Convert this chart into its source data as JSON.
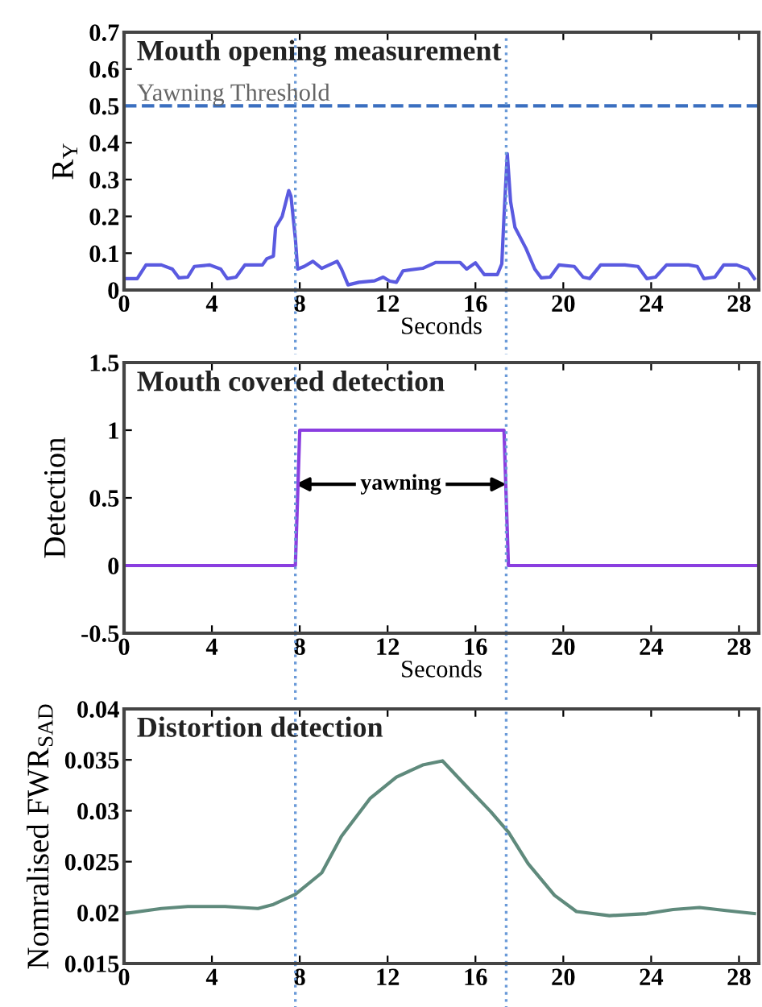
{
  "chart_data": [
    {
      "type": "line",
      "title": "Mouth opening measurement",
      "xlabel": "Seconds",
      "ylabel": "R$_{Y}$",
      "xlim": [
        0,
        28.9
      ],
      "xticks": [
        0,
        4,
        8,
        12,
        16,
        20,
        24,
        28
      ],
      "ylim": [
        0,
        0.7
      ],
      "yticks": [
        0,
        0.1,
        0.2,
        0.3,
        0.4,
        0.5,
        0.6,
        0.7
      ],
      "grid": false,
      "legend": false,
      "x": [
        0,
        0.6,
        1.0,
        1.7,
        2.2,
        2.5,
        2.9,
        3.2,
        3.9,
        4.4,
        4.7,
        5.1,
        5.5,
        6.3,
        6.5,
        6.8,
        6.9,
        7.2,
        7.5,
        7.6,
        7.8,
        7.9,
        8.2,
        8.6,
        9.0,
        9.7,
        9.9,
        10.2,
        10.7,
        11.4,
        11.8,
        12.1,
        12.4,
        12.7,
        13.6,
        14.2,
        15.3,
        15.6,
        16.0,
        16.4,
        17.0,
        17.2,
        17.3,
        17.45,
        17.6,
        17.8,
        18.3,
        18.7,
        19.0,
        19.4,
        19.8,
        20.5,
        20.9,
        21.2,
        21.7,
        22.8,
        23.4,
        23.8,
        24.2,
        24.7,
        25.7,
        26.1,
        26.4,
        26.9,
        27.3,
        27.9,
        28.4,
        28.7
      ],
      "series": [
        {
          "color": "#5a5ae0",
          "values": [
            0.031,
            0.031,
            0.068,
            0.068,
            0.057,
            0.033,
            0.035,
            0.064,
            0.068,
            0.057,
            0.031,
            0.035,
            0.068,
            0.068,
            0.085,
            0.092,
            0.17,
            0.2,
            0.27,
            0.255,
            0.14,
            0.057,
            0.064,
            0.078,
            0.059,
            0.078,
            0.057,
            0.014,
            0.021,
            0.025,
            0.035,
            0.024,
            0.021,
            0.052,
            0.059,
            0.075,
            0.075,
            0.057,
            0.074,
            0.042,
            0.042,
            0.071,
            0.2,
            0.37,
            0.24,
            0.17,
            0.113,
            0.057,
            0.033,
            0.035,
            0.068,
            0.064,
            0.035,
            0.031,
            0.068,
            0.068,
            0.064,
            0.031,
            0.035,
            0.068,
            0.068,
            0.064,
            0.031,
            0.035,
            0.068,
            0.068,
            0.057,
            0.031
          ]
        }
      ],
      "ref_lines": [
        {
          "axis": "y",
          "value": 0.5,
          "label": "Yawning Threshold",
          "color": "#3a6fc0",
          "line_style": "dashed"
        },
        {
          "axis": "x",
          "value": 7.8,
          "color": "#6a9ad8",
          "line_style": "dotted"
        },
        {
          "axis": "x",
          "value": 17.4,
          "color": "#6a9ad8",
          "line_style": "dotted"
        }
      ]
    },
    {
      "type": "line",
      "title": "Mouth covered detection",
      "xlabel": "Seconds",
      "ylabel": "Detection",
      "xlim": [
        0,
        28.9
      ],
      "xticks": [
        0,
        4,
        8,
        12,
        16,
        20,
        24,
        28
      ],
      "ylim": [
        -0.5,
        1.5
      ],
      "yticks": [
        -0.5,
        0,
        0.5,
        1,
        1.5
      ],
      "grid": false,
      "legend": false,
      "x": [
        0,
        7.8,
        8.0,
        17.3,
        17.5,
        28.9
      ],
      "series": [
        {
          "color": "#8a3ee0",
          "values": [
            0,
            0,
            1,
            1,
            0,
            0
          ]
        }
      ],
      "annotations": [
        "yawning"
      ],
      "ref_lines": [
        {
          "axis": "x",
          "value": 7.8,
          "color": "#6a9ad8",
          "line_style": "dotted"
        },
        {
          "axis": "x",
          "value": 17.4,
          "color": "#6a9ad8",
          "line_style": "dotted"
        }
      ]
    },
    {
      "type": "line",
      "title": "Distortion detection",
      "ylabel": "Nomralised FWR$_{SAD}$",
      "xlim": [
        0,
        28.9
      ],
      "xticks": [
        0,
        4,
        8,
        12,
        16,
        20,
        24,
        28
      ],
      "ylim": [
        0.015,
        0.04
      ],
      "yticks": [
        0.015,
        0.02,
        0.025,
        0.03,
        0.035,
        0.04
      ],
      "grid": false,
      "legend": false,
      "x": [
        0,
        1.7,
        2.9,
        4.6,
        6.1,
        6.8,
        7.8,
        9.0,
        9.9,
        11.2,
        12.4,
        13.6,
        14.5,
        15.5,
        16.7,
        17.5,
        18.4,
        19.6,
        20.6,
        22.1,
        23.8,
        25.0,
        26.2,
        27.4,
        28.7
      ],
      "series": [
        {
          "color": "#5f8a7c",
          "values": [
            0.0199,
            0.0204,
            0.0206,
            0.0206,
            0.0204,
            0.0208,
            0.0218,
            0.0239,
            0.0275,
            0.0312,
            0.0333,
            0.0345,
            0.0349,
            0.0326,
            0.0299,
            0.0279,
            0.0248,
            0.0217,
            0.0201,
            0.0197,
            0.0199,
            0.0203,
            0.0205,
            0.0202,
            0.0199
          ]
        }
      ],
      "ref_lines": [
        {
          "axis": "x",
          "value": 7.8,
          "color": "#6a9ad8",
          "line_style": "dotted"
        },
        {
          "axis": "x",
          "value": 17.4,
          "color": "#6a9ad8",
          "line_style": "dotted"
        }
      ]
    }
  ]
}
